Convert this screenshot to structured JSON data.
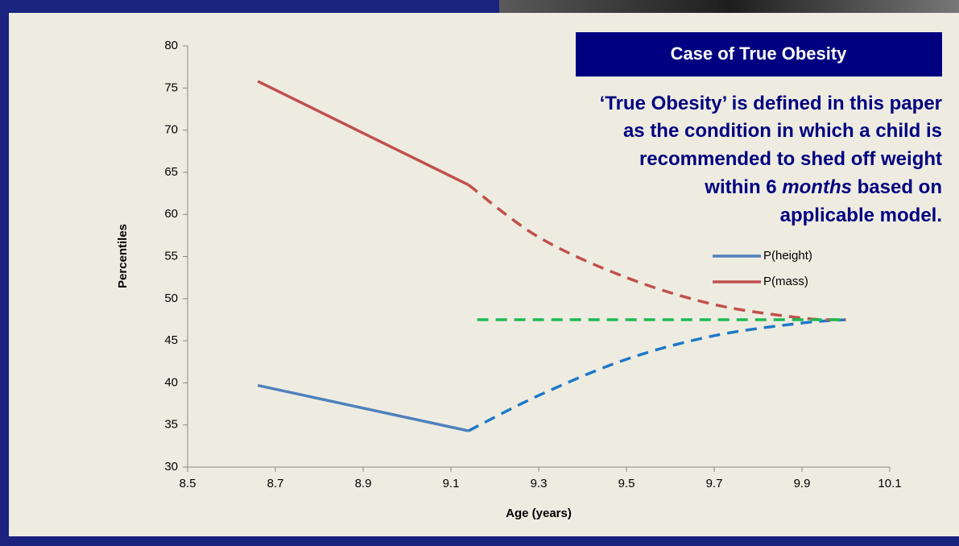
{
  "chart_data": {
    "type": "line",
    "title": "Case of True Obesity",
    "note_lines": [
      "‘True Obesity’ is defined in this paper",
      "as the condition in which a child is",
      "recommended to shed off weight",
      "within 6 ",
      "months",
      " based on",
      "applicable model."
    ],
    "x_label": "Age (years)",
    "y_label": "Percentiles",
    "xlim": [
      8.5,
      10.1
    ],
    "xticks": [
      8.5,
      8.7,
      8.9,
      9.1,
      9.3,
      9.5,
      9.7,
      9.9,
      10.1
    ],
    "ylim": [
      30,
      80
    ],
    "yticks": [
      30,
      35,
      40,
      45,
      50,
      55,
      60,
      65,
      70,
      75,
      80
    ],
    "series": [
      {
        "name": "P(height)",
        "color": "#4f81bd",
        "x": [
          8.66,
          9.14
        ],
        "values": [
          39.7,
          34.3
        ]
      },
      {
        "name": "P(mass)",
        "color": "#c0504d",
        "x": [
          8.66,
          9.14
        ],
        "values": [
          75.8,
          63.5
        ]
      }
    ],
    "projections": [
      {
        "color": "#1f78c8",
        "x": [
          9.14,
          9.3,
          9.5,
          9.7,
          9.9,
          10.0
        ],
        "values": [
          34.3,
          38.5,
          42.8,
          45.6,
          47.1,
          47.5
        ]
      },
      {
        "color": "#c0504d",
        "x": [
          9.14,
          9.3,
          9.5,
          9.7,
          9.9,
          10.0
        ],
        "values": [
          63.5,
          57.3,
          52.5,
          49.3,
          47.7,
          47.5
        ]
      },
      {
        "color": "#1db954",
        "x": [
          9.16,
          10.0
        ],
        "values": [
          47.5,
          47.5
        ]
      }
    ]
  }
}
